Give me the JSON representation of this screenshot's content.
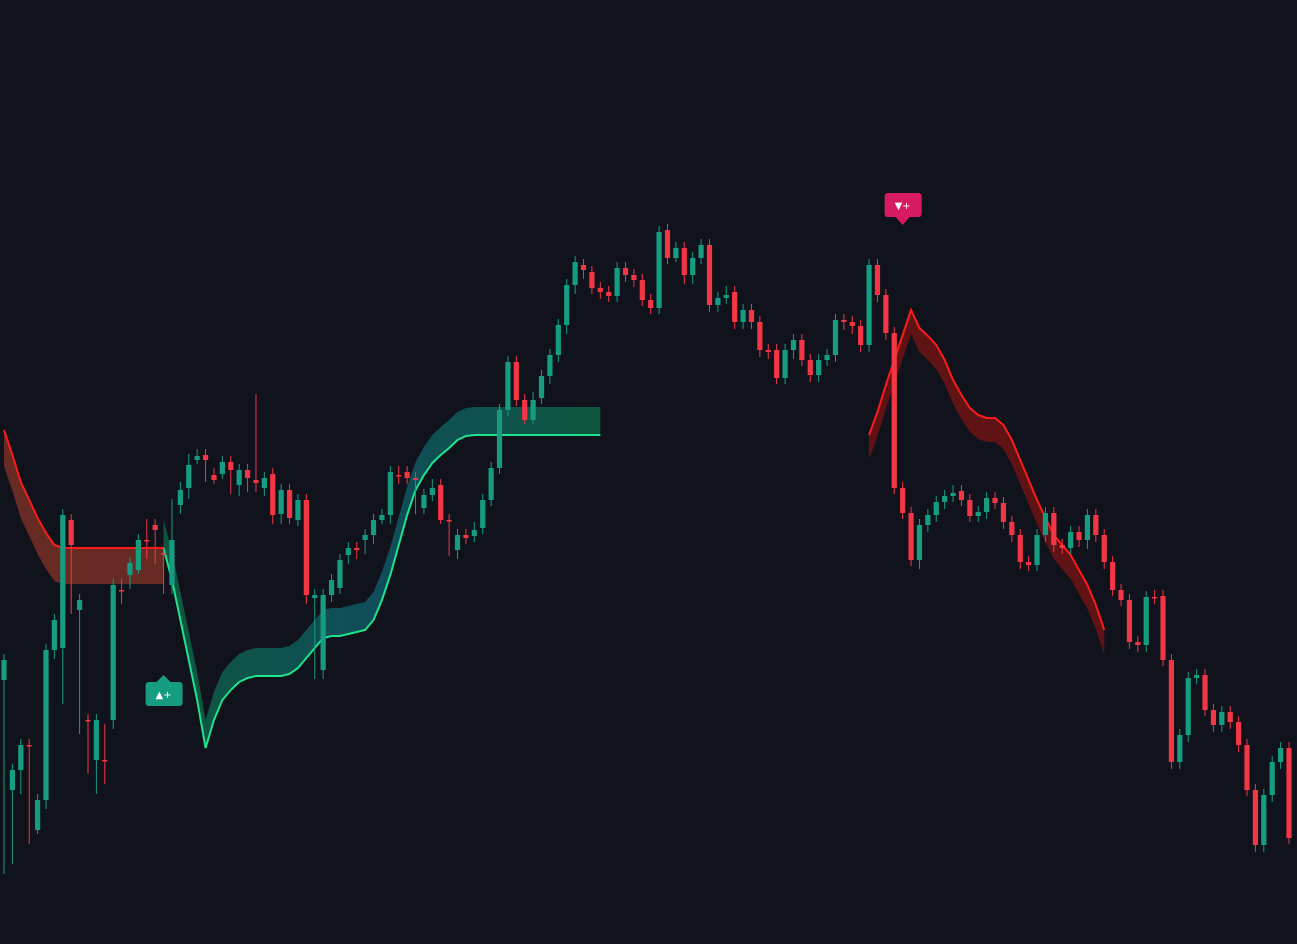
{
  "colors": {
    "background": "#10131b",
    "bull": "#169c81",
    "bear": "#f23645",
    "trail_up": "#1ee38e",
    "trail_down": "#ff1a1a",
    "signal_buy": "#169c81",
    "signal_sell": "#d81b60"
  },
  "chart_data": {
    "type": "candlestick",
    "grid": false,
    "ylim": [
      0,
      944
    ],
    "candles": [
      [
        0,
        680,
        660,
        860,
        870
      ],
      [
        1,
        790,
        770,
        770,
        860
      ],
      [
        2,
        770,
        745,
        745,
        790
      ],
      [
        3,
        745,
        745,
        830,
        840
      ],
      [
        4,
        830,
        800,
        800,
        830
      ],
      [
        5,
        800,
        650,
        650,
        805
      ],
      [
        6,
        650,
        620,
        648,
        655
      ],
      [
        7,
        648,
        515,
        520,
        700
      ],
      [
        8,
        520,
        545,
        610,
        605
      ],
      [
        9,
        610,
        600,
        720,
        730
      ],
      [
        10,
        720,
        720,
        765,
        770
      ],
      [
        11,
        760,
        720,
        720,
        790
      ],
      [
        12,
        760,
        760,
        730,
        780
      ],
      [
        13,
        720,
        585,
        590,
        725
      ],
      [
        14,
        590,
        590,
        585,
        600
      ],
      [
        15,
        575,
        563,
        575,
        585
      ],
      [
        16,
        570,
        540,
        540,
        560
      ],
      [
        17,
        540,
        540,
        525,
        555
      ],
      [
        18,
        525,
        530,
        555,
        560
      ],
      [
        19,
        553,
        553,
        585,
        590
      ],
      [
        20,
        585,
        540,
        505,
        590
      ],
      [
        21,
        505,
        490,
        488,
        510
      ],
      [
        22,
        488,
        465,
        460,
        495
      ],
      [
        23,
        460,
        456,
        455,
        460
      ],
      [
        24,
        455,
        460,
        475,
        478
      ],
      [
        25,
        475,
        480,
        474,
        480
      ],
      [
        26,
        474,
        462,
        462,
        475
      ],
      [
        27,
        462,
        470,
        486,
        490
      ],
      [
        28,
        485,
        470,
        470,
        492
      ],
      [
        29,
        470,
        478,
        484,
        488
      ],
      [
        30,
        480,
        483,
        488,
        400
      ],
      [
        31,
        488,
        478,
        478,
        492
      ],
      [
        32,
        474,
        515,
        518,
        520
      ],
      [
        33,
        514,
        490,
        490,
        520
      ],
      [
        34,
        490,
        518,
        520,
        520
      ],
      [
        35,
        520,
        500,
        500,
        522
      ],
      [
        36,
        500,
        595,
        598,
        600
      ],
      [
        37,
        598,
        595,
        670,
        675
      ],
      [
        38,
        670,
        595,
        595,
        675
      ],
      [
        39,
        595,
        580,
        588,
        598
      ],
      [
        40,
        588,
        560,
        560,
        590
      ],
      [
        41,
        555,
        548,
        548,
        560
      ],
      [
        42,
        548,
        550,
        553,
        555
      ],
      [
        43,
        540,
        535,
        535,
        550
      ],
      [
        44,
        535,
        520,
        520,
        540
      ],
      [
        45,
        520,
        515,
        515,
        520
      ],
      [
        46,
        515,
        472,
        475,
        520
      ],
      [
        47,
        475,
        475,
        472,
        480
      ],
      [
        48,
        472,
        478,
        478,
        480
      ],
      [
        49,
        478,
        480,
        508,
        510
      ],
      [
        50,
        508,
        495,
        495,
        510
      ],
      [
        51,
        495,
        488,
        485,
        497
      ],
      [
        52,
        485,
        520,
        518,
        520
      ],
      [
        53,
        520,
        520,
        550,
        552
      ],
      [
        54,
        550,
        535,
        535,
        555
      ],
      [
        55,
        535,
        538,
        536,
        540
      ],
      [
        56,
        536,
        530,
        528,
        538
      ],
      [
        57,
        528,
        500,
        500,
        530
      ],
      [
        58,
        500,
        468,
        468,
        502
      ],
      [
        59,
        468,
        410,
        410,
        470
      ],
      [
        60,
        410,
        362,
        362,
        412
      ],
      [
        61,
        362,
        400,
        400,
        402
      ],
      [
        62,
        400,
        420,
        420,
        420
      ],
      [
        63,
        420,
        400,
        398,
        420
      ],
      [
        64,
        398,
        376,
        376,
        400
      ],
      [
        65,
        376,
        355,
        355,
        380
      ],
      [
        66,
        355,
        325,
        325,
        358
      ],
      [
        67,
        325,
        285,
        285,
        330
      ],
      [
        68,
        285,
        262,
        265,
        290
      ],
      [
        69,
        265,
        270,
        272,
        275
      ],
      [
        70,
        272,
        288,
        288,
        290
      ],
      [
        71,
        288,
        292,
        292,
        295
      ],
      [
        72,
        292,
        296,
        296,
        298
      ],
      [
        73,
        296,
        268,
        268,
        298
      ],
      [
        74,
        268,
        275,
        275,
        278
      ],
      [
        75,
        275,
        280,
        280,
        283
      ],
      [
        76,
        280,
        300,
        300,
        302
      ],
      [
        77,
        300,
        308,
        308,
        310
      ],
      [
        78,
        308,
        232,
        232,
        310
      ],
      [
        79,
        230,
        258,
        258,
        260
      ],
      [
        80,
        258,
        248,
        248,
        258
      ],
      [
        81,
        248,
        275,
        275,
        280
      ],
      [
        82,
        275,
        258,
        258,
        280
      ],
      [
        83,
        258,
        245,
        245,
        260
      ],
      [
        84,
        245,
        305,
        305,
        308
      ],
      [
        85,
        305,
        298,
        298,
        308
      ],
      [
        86,
        298,
        295,
        292,
        300
      ],
      [
        87,
        292,
        322,
        322,
        325
      ],
      [
        88,
        322,
        310,
        310,
        325
      ],
      [
        89,
        310,
        322,
        322,
        325
      ],
      [
        90,
        322,
        350,
        350,
        353
      ],
      [
        91,
        350,
        352,
        352,
        355
      ],
      [
        92,
        350,
        378,
        378,
        380
      ],
      [
        93,
        378,
        350,
        350,
        380
      ],
      [
        94,
        350,
        340,
        340,
        355
      ],
      [
        95,
        340,
        360,
        360,
        362
      ],
      [
        96,
        360,
        375,
        375,
        378
      ],
      [
        97,
        375,
        360,
        360,
        378
      ],
      [
        98,
        360,
        355,
        355,
        362
      ],
      [
        99,
        355,
        320,
        320,
        358
      ],
      [
        100,
        320,
        322,
        324,
        326
      ],
      [
        101,
        322,
        326,
        328,
        330
      ],
      [
        102,
        326,
        345,
        345,
        348
      ],
      [
        103,
        345,
        265,
        265,
        348
      ],
      [
        104,
        265,
        295,
        295,
        298
      ],
      [
        105,
        295,
        333,
        333,
        336
      ],
      [
        106,
        333,
        488,
        488,
        490
      ],
      [
        107,
        488,
        513,
        513,
        515
      ],
      [
        108,
        513,
        560,
        560,
        562
      ],
      [
        109,
        560,
        525,
        525,
        565
      ],
      [
        110,
        525,
        515,
        515,
        528
      ],
      [
        111,
        515,
        502,
        502,
        518
      ],
      [
        112,
        502,
        496,
        496,
        505
      ],
      [
        113,
        496,
        493,
        491,
        498
      ],
      [
        114,
        491,
        500,
        500,
        502
      ],
      [
        115,
        500,
        516,
        516,
        518
      ],
      [
        116,
        516,
        512,
        512,
        518
      ],
      [
        117,
        512,
        498,
        498,
        515
      ],
      [
        118,
        498,
        503,
        503,
        505
      ],
      [
        119,
        503,
        522,
        522,
        525
      ],
      [
        120,
        522,
        535,
        535,
        538
      ],
      [
        121,
        535,
        562,
        562,
        565
      ],
      [
        122,
        562,
        565,
        565,
        567
      ],
      [
        123,
        565,
        535,
        535,
        567
      ],
      [
        124,
        535,
        513,
        513,
        538
      ],
      [
        125,
        513,
        545,
        545,
        548
      ],
      [
        126,
        545,
        548,
        548,
        550
      ],
      [
        127,
        548,
        532,
        532,
        550
      ],
      [
        128,
        532,
        540,
        540,
        543
      ],
      [
        129,
        540,
        515,
        515,
        545
      ],
      [
        130,
        515,
        535,
        535,
        538
      ],
      [
        131,
        535,
        562,
        562,
        565
      ],
      [
        132,
        562,
        590,
        590,
        592
      ],
      [
        133,
        590,
        600,
        600,
        602
      ],
      [
        134,
        600,
        642,
        642,
        645
      ],
      [
        135,
        642,
        645,
        645,
        648
      ],
      [
        136,
        645,
        597,
        597,
        648
      ],
      [
        137,
        597,
        597,
        596,
        600
      ],
      [
        138,
        596,
        660,
        660,
        662
      ],
      [
        139,
        660,
        762,
        762,
        765
      ],
      [
        140,
        762,
        735,
        735,
        765
      ],
      [
        141,
        735,
        678,
        678,
        738
      ],
      [
        142,
        678,
        675,
        675,
        680
      ],
      [
        143,
        675,
        710,
        710,
        712
      ],
      [
        144,
        710,
        725,
        725,
        728
      ],
      [
        145,
        725,
        712,
        712,
        728
      ],
      [
        146,
        712,
        722,
        722,
        725
      ],
      [
        147,
        722,
        745,
        745,
        748
      ],
      [
        148,
        745,
        790,
        790,
        792
      ],
      [
        149,
        790,
        845,
        845,
        848
      ],
      [
        150,
        845,
        795,
        795,
        848
      ],
      [
        151,
        795,
        762,
        762,
        798
      ],
      [
        152,
        762,
        748,
        748,
        765
      ],
      [
        153,
        748,
        838,
        838,
        840
      ]
    ],
    "trail_up_segments": [
      {
        "start": 19,
        "line": [
          548,
          580,
          620,
          660,
          700,
          748,
          720,
          700,
          690,
          682,
          678,
          676,
          676,
          676,
          676,
          674,
          668,
          658,
          648,
          638,
          636,
          636,
          634,
          632,
          630,
          620,
          600,
          575,
          545,
          515,
          490,
          475,
          463,
          455,
          448,
          440,
          436,
          435,
          435,
          435,
          435,
          435,
          435,
          435,
          435,
          435,
          435,
          435,
          435,
          435,
          435,
          435,
          435
        ]
      }
    ],
    "trail_down_segments": [
      {
        "start": 0,
        "line": [
          430,
          455,
          482,
          500,
          518,
          533,
          545,
          548,
          548,
          548,
          548,
          548,
          548,
          548,
          548,
          548,
          548,
          548,
          548,
          548
        ]
      },
      {
        "start": 103,
        "line": [
          435,
          412,
          385,
          360,
          335,
          310,
          328,
          336,
          345,
          360,
          380,
          395,
          408,
          415,
          418,
          418,
          425,
          440,
          460,
          480,
          500,
          518,
          535,
          545,
          555,
          570,
          585,
          605,
          630
        ]
      }
    ],
    "signals": [
      {
        "type": "buy",
        "bar": 19,
        "label": "▲+"
      },
      {
        "type": "sell",
        "bar": 107,
        "label": "▼+"
      }
    ]
  }
}
